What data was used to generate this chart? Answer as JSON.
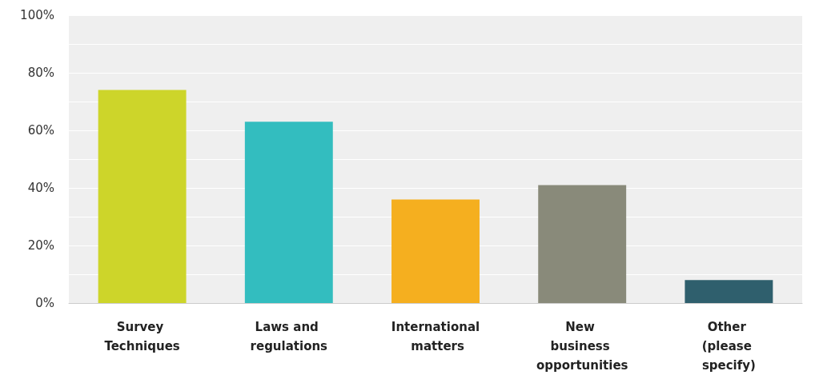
{
  "chart_data": {
    "type": "bar",
    "categories": [
      "Survey Techniques",
      "Laws and regulations",
      "International matters",
      "New business opportunities",
      "Other (please specify)"
    ],
    "values": [
      74,
      63,
      36,
      41,
      8
    ],
    "colors": [
      "#cdd52a",
      "#33bdbf",
      "#f5af1f",
      "#898a7a",
      "#2f5f6d"
    ],
    "ylim": [
      0,
      100
    ],
    "yticks": [
      {
        "value": 0,
        "label": "0%"
      },
      {
        "value": 10,
        "label": null
      },
      {
        "value": 20,
        "label": "20%"
      },
      {
        "value": 30,
        "label": null
      },
      {
        "value": 40,
        "label": "40%"
      },
      {
        "value": 50,
        "label": null
      },
      {
        "value": 60,
        "label": "60%"
      },
      {
        "value": 70,
        "label": null
      },
      {
        "value": 80,
        "label": "80%"
      },
      {
        "value": 90,
        "label": null
      },
      {
        "value": 100,
        "label": "100%"
      }
    ],
    "grid": "y"
  }
}
